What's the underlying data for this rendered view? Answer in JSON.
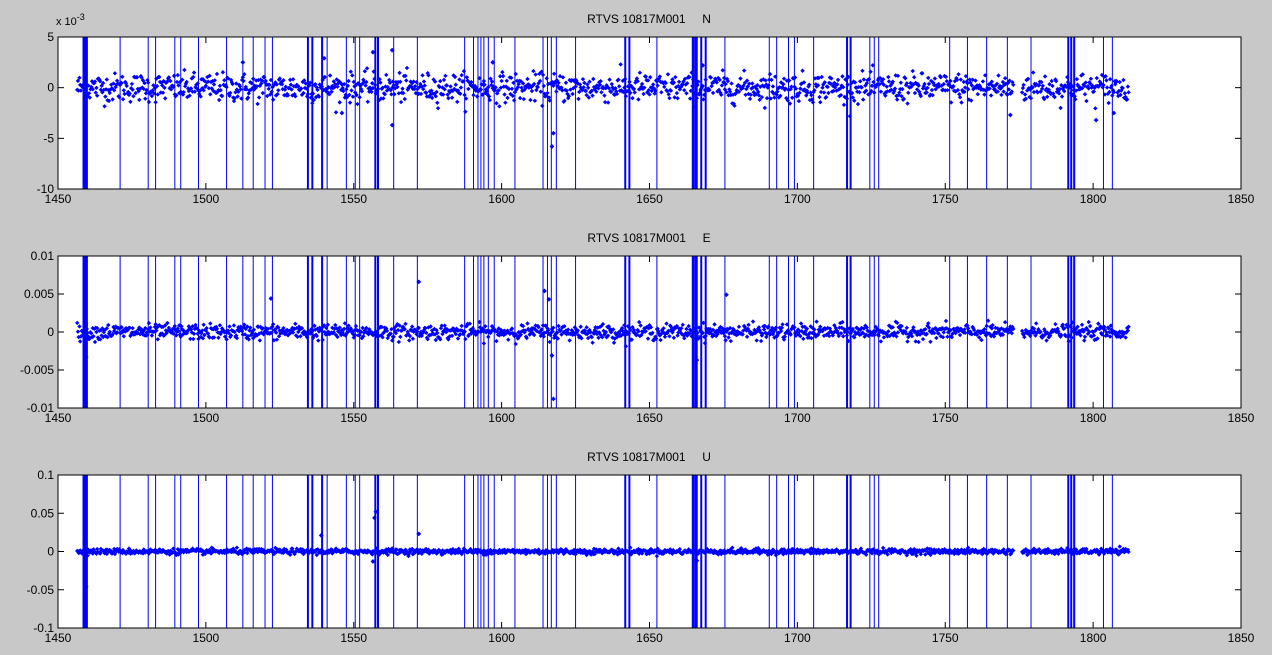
{
  "figure": {
    "background": "#c8c8c8",
    "axes_bg": "#ffffff",
    "series_color": "#0000ff"
  },
  "chart_data": [
    {
      "type": "scatter",
      "title": "RTVS 10817M001     N",
      "xlim": [
        1450,
        1850
      ],
      "ylim": [
        -0.01,
        0.005
      ],
      "x_ticks": [
        1450,
        1500,
        1550,
        1600,
        1650,
        1700,
        1750,
        1800,
        1850
      ],
      "y_ticks": [
        "5",
        "0",
        "-5",
        "-10"
      ],
      "y_tick_values": [
        0.005,
        0,
        -0.005,
        -0.01
      ],
      "y_exponent": "x 10",
      "y_exponent_power": "-3",
      "grid": false,
      "legend": "none",
      "x_range_observed": [
        1456.5,
        1812
      ],
      "gap": [
        1773,
        1776
      ],
      "noise_std": 0.0007,
      "vertical_lines_at_x": "shared",
      "outliers": [
        {
          "x": 1459,
          "y": -0.0011
        },
        {
          "x": 1512.5,
          "y": 0.0025
        },
        {
          "x": 1540,
          "y": 0.0029
        },
        {
          "x": 1556.5,
          "y": 0.0035
        },
        {
          "x": 1563,
          "y": 0.0037
        },
        {
          "x": 1597,
          "y": 0.0025
        },
        {
          "x": 1617,
          "y": -0.0058
        },
        {
          "x": 1617.5,
          "y": -0.0045
        },
        {
          "x": 1546,
          "y": -0.0025
        },
        {
          "x": 1563,
          "y": -0.0037
        },
        {
          "x": 1668,
          "y": 0.0022
        },
        {
          "x": 1772,
          "y": -0.0027
        },
        {
          "x": 1801,
          "y": -0.0032
        },
        {
          "x": 1807,
          "y": -0.0025
        }
      ]
    },
    {
      "type": "scatter",
      "title": "RTVS 10817M001     E",
      "xlim": [
        1450,
        1850
      ],
      "ylim": [
        -0.01,
        0.01
      ],
      "x_ticks": [
        1450,
        1500,
        1550,
        1600,
        1650,
        1700,
        1750,
        1800,
        1850
      ],
      "y_ticks": [
        "0.01",
        "0.005",
        "0",
        "-0.005",
        "-0.01"
      ],
      "y_tick_values": [
        0.01,
        0.005,
        0,
        -0.005,
        -0.01
      ],
      "grid": false,
      "legend": "none",
      "x_range_observed": [
        1456.5,
        1812
      ],
      "gap": [
        1773,
        1776
      ],
      "noise_std": 0.0005,
      "outliers": [
        {
          "x": 1522,
          "y": 0.0044
        },
        {
          "x": 1572,
          "y": 0.0066
        },
        {
          "x": 1614.5,
          "y": 0.0054
        },
        {
          "x": 1616,
          "y": 0.0043
        },
        {
          "x": 1676,
          "y": 0.0049
        },
        {
          "x": 1617.5,
          "y": -0.0088
        },
        {
          "x": 1617,
          "y": -0.0031
        },
        {
          "x": 1666,
          "y": -0.0037
        },
        {
          "x": 1459.5,
          "y": -0.0033
        }
      ]
    },
    {
      "type": "scatter",
      "title": "RTVS 10817M001     U",
      "xlim": [
        1450,
        1850
      ],
      "ylim": [
        -0.1,
        0.1
      ],
      "x_ticks": [
        1450,
        1500,
        1550,
        1600,
        1650,
        1700,
        1750,
        1800,
        1850
      ],
      "y_ticks": [
        "0.1",
        "0.05",
        "0",
        "-0.05",
        "-0.1"
      ],
      "y_tick_values": [
        0.1,
        0.05,
        0,
        -0.05,
        -0.1
      ],
      "grid": false,
      "legend": "none",
      "x_range_observed": [
        1456.5,
        1812
      ],
      "gap": [
        1773,
        1776
      ],
      "noise_std": 0.0018,
      "outliers": [
        {
          "x": 1459.5,
          "y": -0.046
        },
        {
          "x": 1459,
          "y": 0.012
        },
        {
          "x": 1557.5,
          "y": 0.052
        },
        {
          "x": 1557,
          "y": 0.044
        },
        {
          "x": 1572,
          "y": 0.023
        },
        {
          "x": 1539,
          "y": 0.021
        },
        {
          "x": 1556.5,
          "y": -0.013
        },
        {
          "x": 1666,
          "y": -0.012
        }
      ]
    }
  ],
  "vertical_lines": [
    {
      "x": 1458.8,
      "w": 3
    },
    {
      "x": 1459.6,
      "w": 3
    },
    {
      "x": 1471,
      "w": 1
    },
    {
      "x": 1480.5,
      "w": 1
    },
    {
      "x": 1483,
      "w": 1
    },
    {
      "x": 1489.5,
      "w": 1
    },
    {
      "x": 1491.5,
      "w": 1
    },
    {
      "x": 1497.5,
      "w": 1
    },
    {
      "x": 1507,
      "w": 1
    },
    {
      "x": 1512.5,
      "w": 1
    },
    {
      "x": 1516,
      "w": 1
    },
    {
      "x": 1520,
      "w": 1
    },
    {
      "x": 1522.5,
      "w": 1
    },
    {
      "x": 1534.5,
      "w": 2
    },
    {
      "x": 1536,
      "w": 2
    },
    {
      "x": 1539.3,
      "w": 2
    },
    {
      "x": 1541,
      "w": 1
    },
    {
      "x": 1547.5,
      "w": 1
    },
    {
      "x": 1550.5,
      "w": 1
    },
    {
      "x": 1552,
      "w": 1
    },
    {
      "x": 1557.3,
      "w": 2
    },
    {
      "x": 1558.2,
      "w": 2
    },
    {
      "x": 1563.5,
      "w": 1
    },
    {
      "x": 1571.5,
      "w": 1
    },
    {
      "x": 1587.5,
      "w": 1
    },
    {
      "x": 1590.5,
      "w": 1
    },
    {
      "x": 1592,
      "w": 1
    },
    {
      "x": 1593,
      "w": 1
    },
    {
      "x": 1594,
      "w": 1
    },
    {
      "x": 1595.5,
      "w": 1
    },
    {
      "x": 1597.5,
      "w": 1
    },
    {
      "x": 1604.5,
      "w": 1
    },
    {
      "x": 1614,
      "w": 1
    },
    {
      "x": 1615.5,
      "w": 1
    },
    {
      "x": 1616.8,
      "w": 1
    },
    {
      "x": 1618.5,
      "w": 1
    },
    {
      "x": 1625,
      "w": 1
    },
    {
      "x": 1641.8,
      "w": 2
    },
    {
      "x": 1643.2,
      "w": 2
    },
    {
      "x": 1652.5,
      "w": 1
    },
    {
      "x": 1664.8,
      "w": 3
    },
    {
      "x": 1665.8,
      "w": 3
    },
    {
      "x": 1667.5,
      "w": 2
    },
    {
      "x": 1669,
      "w": 2
    },
    {
      "x": 1675.5,
      "w": 1
    },
    {
      "x": 1690.5,
      "w": 1
    },
    {
      "x": 1693,
      "w": 1
    },
    {
      "x": 1697,
      "w": 1
    },
    {
      "x": 1699,
      "w": 1
    },
    {
      "x": 1705.5,
      "w": 1
    },
    {
      "x": 1716.8,
      "w": 2
    },
    {
      "x": 1718,
      "w": 2
    },
    {
      "x": 1724.5,
      "w": 1
    },
    {
      "x": 1726,
      "w": 1
    },
    {
      "x": 1727.5,
      "w": 1
    },
    {
      "x": 1751.5,
      "w": 1
    },
    {
      "x": 1757.5,
      "w": 1
    },
    {
      "x": 1764,
      "w": 1
    },
    {
      "x": 1771,
      "w": 1
    },
    {
      "x": 1779,
      "w": 1
    },
    {
      "x": 1791.6,
      "w": 2
    },
    {
      "x": 1792.6,
      "w": 2
    },
    {
      "x": 1793.6,
      "w": 2
    },
    {
      "x": 1803.5,
      "w": 1
    },
    {
      "x": 1806.5,
      "w": 1
    }
  ]
}
